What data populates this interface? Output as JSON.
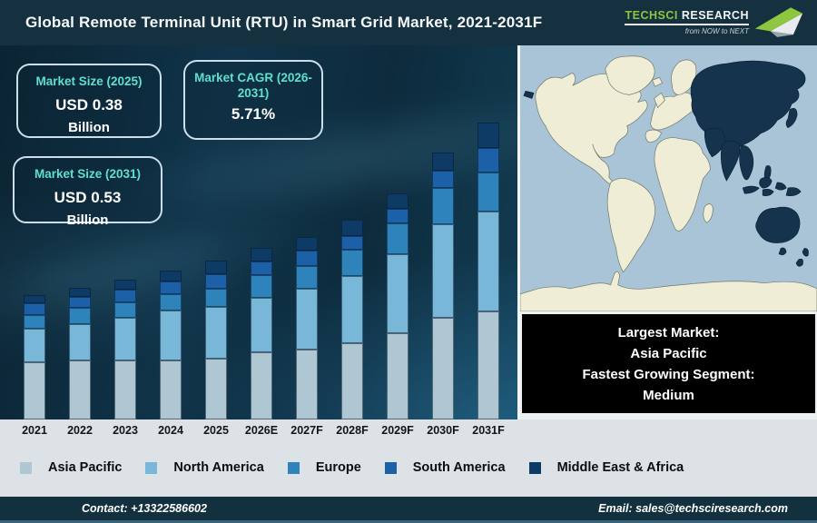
{
  "colors": {
    "header_bg": "#15313f",
    "footer_bg": "#13303e",
    "strip_bg": "#dce2e6",
    "accent_teal": "#5fe0cc",
    "logo_green": "#8dc63f"
  },
  "header": {
    "title": "Global Remote Terminal Unit (RTU) in Smart Grid Market, 2021-2031F"
  },
  "logo": {
    "brand_primary": "TechSci",
    "brand_secondary": "Research",
    "tagline": "from NOW to NEXT"
  },
  "stat_boxes": [
    {
      "label": "Market Size (2025)",
      "value": "USD 0.38",
      "unit": "Billion"
    },
    {
      "label": "Market CAGR (2026-2031)",
      "value": "5.71%",
      "unit": ""
    },
    {
      "label": "Market Size (2031)",
      "value": "USD 0.53",
      "unit": "Billion"
    }
  ],
  "chart_data": {
    "type": "bar",
    "stacked": true,
    "title": "Global Remote Terminal Unit (RTU) in Smart Grid Market, 2021-2031F",
    "xlabel": "",
    "ylabel": "",
    "value_unit": "relative stacked height (no y-axis shown in source); anchors: total 2025 = USD 0.38 Bn, total 2031 = USD 0.53 Bn, CAGR 2026-2031 = 5.71%",
    "grid": false,
    "legend_position": "bottom",
    "categories": [
      "2021",
      "2022",
      "2023",
      "2024",
      "2025",
      "2026E",
      "2027F",
      "2028F",
      "2029F",
      "2030F",
      "2031F"
    ],
    "series": [
      {
        "name": "Asia Pacific",
        "color": "#aec7d3",
        "values": [
          63,
          65,
          65,
          65,
          67,
          74,
          77,
          84,
          95,
          112,
          119
        ]
      },
      {
        "name": "North America",
        "color": "#79b7d9",
        "values": [
          37,
          40,
          47,
          55,
          57,
          60,
          67,
          74,
          87,
          103,
          110
        ]
      },
      {
        "name": "Europe",
        "color": "#2f83bb",
        "values": [
          15,
          18,
          17,
          18,
          20,
          25,
          25,
          29,
          34,
          40,
          43
        ]
      },
      {
        "name": "South America",
        "color": "#1c61a8",
        "values": [
          13,
          12,
          14,
          14,
          16,
          15,
          17,
          15,
          16,
          19,
          27
        ]
      },
      {
        "name": "Middle East & Africa",
        "color": "#0e3a66",
        "values": [
          9,
          10,
          11,
          12,
          15,
          15,
          15,
          18,
          17,
          20,
          28
        ]
      }
    ],
    "ylim": [
      0,
      340
    ]
  },
  "map": {
    "ocean": "#a9c4d7",
    "land": "#f0edd6",
    "highlight": "#16334e",
    "highlighted_region": "Asia Pacific"
  },
  "callout": {
    "lines": [
      "Largest Market:",
      "Asia Pacific",
      "Fastest Growing Segment:",
      "Medium"
    ]
  },
  "footer": {
    "contact": "Contact: +13322586602",
    "email": "Email: sales@techsciresearch.com"
  }
}
